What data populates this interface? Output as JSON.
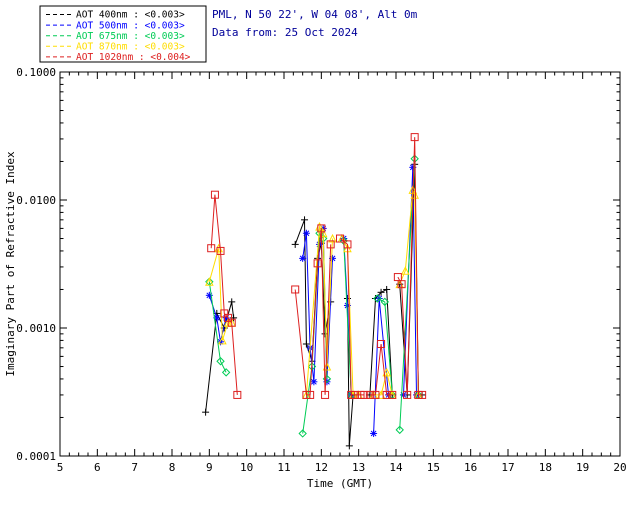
{
  "header": {
    "site_info": "PML, N 50 22', W 04 08', Alt 0m",
    "data_from": "Data from: 25 Oct 2024"
  },
  "chart_data": {
    "type": "line",
    "title": "",
    "xlabel": "Time (GMT)",
    "ylabel": "Imaginary Part of Refractive Index",
    "x_scale": "linear",
    "y_scale": "log",
    "xlim": [
      5,
      20
    ],
    "ylim": [
      0.0001,
      0.1
    ],
    "x_ticks": [
      5,
      6,
      7,
      8,
      9,
      10,
      11,
      12,
      13,
      14,
      15,
      16,
      17,
      18,
      19,
      20
    ],
    "y_tick_labels": [
      "0.0001",
      "0.0010",
      "0.0100",
      "0.1000"
    ],
    "grid": false,
    "legend_position": "top-left",
    "series": [
      {
        "name": "AOT 400nm",
        "label": "AOT  400nm : <0.003>",
        "color": "#000000",
        "marker": "plus",
        "segments": [
          [
            [
              8.9,
              0.00022
            ],
            [
              9.2,
              0.0013
            ],
            [
              9.4,
              0.001
            ],
            [
              9.6,
              0.0016
            ],
            [
              9.65,
              0.0012
            ]
          ],
          [
            [
              11.3,
              0.0045
            ],
            [
              11.55,
              0.007
            ],
            [
              11.6,
              0.00075
            ],
            [
              11.75,
              0.00055
            ],
            [
              11.9,
              0.0035
            ],
            [
              12.0,
              0.0046
            ],
            [
              12.1,
              0.0009
            ],
            [
              12.25,
              0.0016
            ]
          ],
          [
            [
              12.7,
              0.0017
            ],
            [
              12.75,
              0.00012
            ],
            [
              12.85,
              0.0003
            ]
          ],
          [
            [
              13.3,
              0.0003
            ],
            [
              13.45,
              0.0017
            ],
            [
              13.6,
              0.0019
            ],
            [
              13.75,
              0.002
            ],
            [
              13.9,
              0.0003
            ]
          ],
          [
            [
              14.1,
              0.0022
            ],
            [
              14.3,
              0.0003
            ],
            [
              14.5,
              0.019
            ],
            [
              14.6,
              0.0003
            ],
            [
              14.7,
              0.0003
            ]
          ]
        ]
      },
      {
        "name": "AOT 500nm",
        "label": "AOT  500nm : <0.003>",
        "color": "#0000ff",
        "marker": "asterisk",
        "segments": [
          [
            [
              9.0,
              0.0018
            ],
            [
              9.2,
              0.0012
            ],
            [
              9.3,
              0.00078
            ],
            [
              9.45,
              0.0012
            ]
          ],
          [
            [
              11.5,
              0.0035
            ],
            [
              11.6,
              0.0055
            ],
            [
              11.7,
              0.0007
            ],
            [
              11.8,
              0.00038
            ],
            [
              11.95,
              0.0045
            ],
            [
              12.05,
              0.006
            ],
            [
              12.15,
              0.00038
            ],
            [
              12.3,
              0.0035
            ]
          ],
          [
            [
              12.6,
              0.005
            ],
            [
              12.7,
              0.0015
            ],
            [
              12.8,
              0.0003
            ]
          ],
          [
            [
              13.4,
              0.00015
            ],
            [
              13.55,
              0.0017
            ],
            [
              13.8,
              0.0003
            ]
          ],
          [
            [
              14.2,
              0.0003
            ],
            [
              14.45,
              0.018
            ],
            [
              14.55,
              0.0003
            ]
          ]
        ]
      },
      {
        "name": "AOT 675nm",
        "label": "AOT  675nm : <0.003>",
        "color": "#00cc55",
        "marker": "diamond",
        "segments": [
          [
            [
              9.0,
              0.0023
            ],
            [
              9.3,
              0.00055
            ],
            [
              9.45,
              0.00045
            ]
          ],
          [
            [
              11.5,
              0.00015
            ],
            [
              11.75,
              0.0005
            ],
            [
              11.95,
              0.0055
            ],
            [
              12.05,
              0.005
            ],
            [
              12.15,
              0.0004
            ]
          ],
          [
            [
              12.6,
              0.0048
            ],
            [
              12.8,
              0.0003
            ]
          ],
          [
            [
              13.5,
              0.0017
            ],
            [
              13.7,
              0.0016
            ],
            [
              13.9,
              0.0003
            ]
          ],
          [
            [
              14.1,
              0.00016
            ],
            [
              14.5,
              0.021
            ],
            [
              14.6,
              0.0003
            ]
          ]
        ]
      },
      {
        "name": "AOT 870nm",
        "label": "AOT  870nm : <0.003>",
        "color": "#ffdd00",
        "marker": "triangle",
        "segments": [
          [
            [
              9.0,
              0.0023
            ],
            [
              9.25,
              0.0042
            ],
            [
              9.35,
              0.0008
            ],
            [
              9.5,
              0.0011
            ],
            [
              9.6,
              0.0011
            ]
          ],
          [
            [
              11.6,
              0.0003
            ],
            [
              11.95,
              0.0062
            ],
            [
              12.05,
              0.0055
            ],
            [
              12.15,
              0.0005
            ],
            [
              12.3,
              0.005
            ]
          ],
          [
            [
              12.55,
              0.005
            ],
            [
              12.7,
              0.0042
            ],
            [
              12.85,
              0.0003
            ],
            [
              13.0,
              0.0003
            ]
          ],
          [
            [
              13.4,
              0.0003
            ],
            [
              13.6,
              0.0003
            ],
            [
              13.75,
              0.00045
            ],
            [
              13.9,
              0.0003
            ]
          ],
          [
            [
              14.1,
              0.0022
            ],
            [
              14.25,
              0.0028
            ],
            [
              14.45,
              0.012
            ],
            [
              14.5,
              0.011
            ],
            [
              14.6,
              0.0003
            ]
          ]
        ]
      },
      {
        "name": "AOT 1020nm",
        "label": "AOT 1020nm : <0.004>",
        "color": "#dd2020",
        "marker": "square",
        "segments": [
          [
            [
              9.05,
              0.0042
            ],
            [
              9.15,
              0.011
            ],
            [
              9.3,
              0.004
            ],
            [
              9.4,
              0.0013
            ],
            [
              9.5,
              0.0012
            ],
            [
              9.6,
              0.0011
            ],
            [
              9.75,
              0.0003
            ]
          ],
          [
            [
              11.3,
              0.002
            ],
            [
              11.6,
              0.0003
            ],
            [
              11.7,
              0.0003
            ],
            [
              11.9,
              0.0032
            ],
            [
              12.0,
              0.006
            ],
            [
              12.1,
              0.0003
            ],
            [
              12.25,
              0.0045
            ]
          ],
          [
            [
              12.5,
              0.005
            ],
            [
              12.7,
              0.0045
            ],
            [
              12.8,
              0.0003
            ],
            [
              12.9,
              0.0003
            ],
            [
              13.05,
              0.0003
            ],
            [
              13.15,
              0.0003
            ]
          ],
          [
            [
              13.3,
              0.0003
            ],
            [
              13.45,
              0.0003
            ],
            [
              13.6,
              0.00075
            ],
            [
              13.75,
              0.0003
            ],
            [
              13.9,
              0.0003
            ]
          ],
          [
            [
              14.05,
              0.0025
            ],
            [
              14.15,
              0.0022
            ],
            [
              14.3,
              0.0003
            ],
            [
              14.5,
              0.031
            ],
            [
              14.6,
              0.0003
            ],
            [
              14.7,
              0.0003
            ]
          ]
        ]
      }
    ]
  },
  "colors": {
    "header_text": "#000099",
    "axis": "#000000",
    "background": "#ffffff"
  }
}
